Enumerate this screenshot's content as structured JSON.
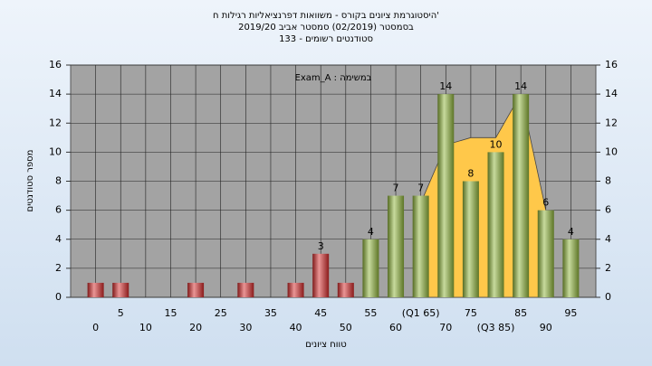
{
  "chart_data": {
    "type": "bar",
    "title_lines": [
      "היסטוגרמת ציונים בקורס - משוואות דפרנציאליות רגילות ח'",
      "בסמסטר  (02/2019)  סמסטר אביב 2019/20",
      "סטודנטים רשומים - 133"
    ],
    "annotation": "Exam_A : במשימה",
    "xlabel": "טווח ציונים",
    "ylabel": "מספר סטודנטים",
    "categories": [
      "0",
      "5",
      "10",
      "15",
      "20",
      "25",
      "30",
      "35",
      "40",
      "45",
      "50",
      "55",
      "60",
      "(Q1 65)",
      "70",
      "75",
      "(Q3 85)",
      "85",
      "90",
      "95"
    ],
    "values": [
      1,
      1,
      0,
      0,
      1,
      0,
      1,
      0,
      1,
      3,
      1,
      4,
      7,
      7,
      14,
      8,
      10,
      14,
      6,
      4
    ],
    "value_labels": [
      null,
      null,
      null,
      null,
      null,
      null,
      null,
      null,
      null,
      "3",
      null,
      "4",
      "7",
      "7",
      "14",
      "8",
      "10",
      "14",
      "6",
      "4"
    ],
    "colors": [
      "#d42a2a",
      "#d42a2a",
      "#d42a2a",
      "#d42a2a",
      "#d42a2a",
      "#d42a2a",
      "#d42a2a",
      "#d42a2a",
      "#d42a2a",
      "#d42a2a",
      "#d42a2a",
      "#8fb43a",
      "#8fb43a",
      "#8fb43a",
      "#8fb43a",
      "#8fb43a",
      "#8fb43a",
      "#8fb43a",
      "#8fb43a",
      "#8fb43a"
    ],
    "area": {
      "color": "#ffc84a",
      "values": [
        null,
        null,
        null,
        null,
        null,
        null,
        null,
        null,
        null,
        null,
        null,
        null,
        null,
        6.5,
        10.5,
        11,
        11,
        14,
        6,
        null
      ]
    },
    "ylim": [
      0,
      16
    ],
    "yticks": [
      0,
      2,
      4,
      6,
      8,
      10,
      12,
      14,
      16
    ],
    "y2lim": [
      0,
      16
    ],
    "y2ticks": [
      0,
      2,
      4,
      6,
      8,
      10,
      12,
      14,
      16
    ],
    "grid": true
  }
}
